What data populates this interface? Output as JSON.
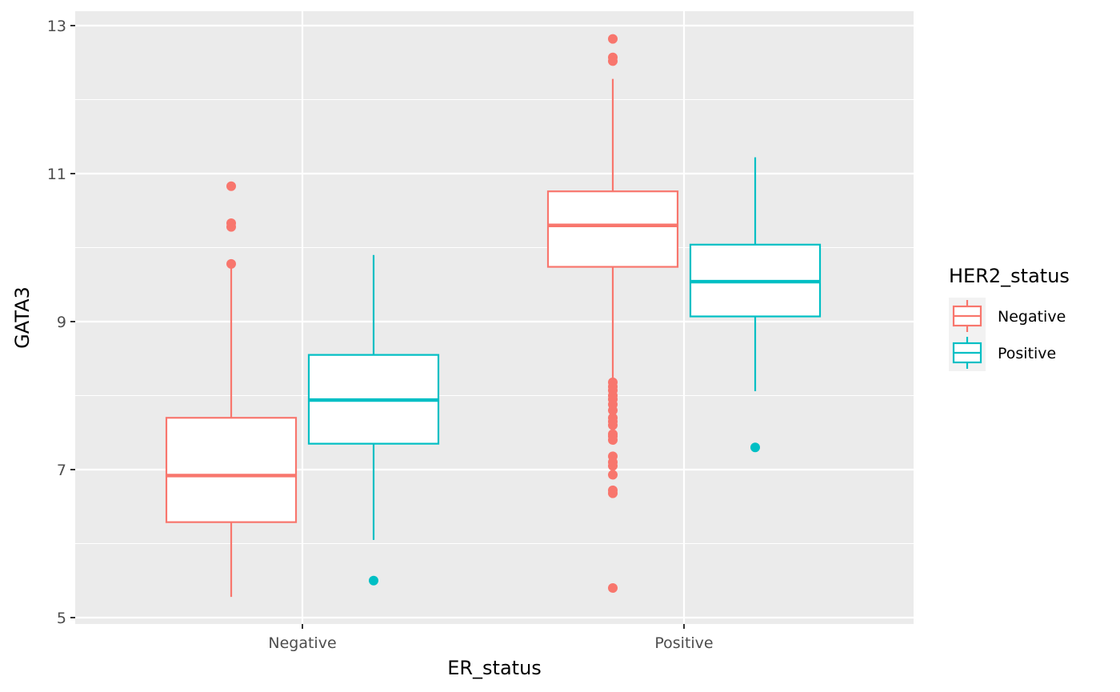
{
  "chart_data": {
    "type": "box",
    "xlabel": "ER_status",
    "ylabel": "GATA3",
    "categories": [
      "Negative",
      "Positive"
    ],
    "ylim": [
      4.9,
      13.2
    ],
    "yticks": [
      "5",
      "7",
      "9",
      "11",
      "13"
    ],
    "grid": true,
    "legend": {
      "title": "HER2_status",
      "position": "right"
    },
    "series": [
      {
        "name": "Negative",
        "color": "#F8766D",
        "boxes": [
          {
            "category": "Negative",
            "whisker_low": 5.28,
            "q1": 6.29,
            "median": 6.92,
            "q3": 7.7,
            "whisker_high": 9.77,
            "outliers": [
              9.78,
              10.28,
              10.33,
              10.83
            ]
          },
          {
            "category": "Positive",
            "whisker_low": 8.2,
            "q1": 9.74,
            "median": 10.3,
            "q3": 10.76,
            "whisker_high": 12.28,
            "outliers": [
              5.4,
              6.68,
              6.72,
              6.93,
              7.05,
              7.1,
              7.18,
              7.4,
              7.45,
              7.48,
              7.6,
              7.65,
              7.7,
              7.8,
              7.88,
              7.95,
              8.0,
              8.07,
              8.12,
              8.18,
              12.52,
              12.57,
              12.82
            ]
          }
        ]
      },
      {
        "name": "Positive",
        "color": "#00BFC4",
        "boxes": [
          {
            "category": "Negative",
            "whisker_low": 6.05,
            "q1": 7.35,
            "median": 7.94,
            "q3": 8.55,
            "whisker_high": 9.9,
            "outliers": [
              5.5
            ]
          },
          {
            "category": "Positive",
            "whisker_low": 8.06,
            "q1": 9.07,
            "median": 9.54,
            "q3": 10.04,
            "whisker_high": 11.22,
            "outliers": [
              7.3
            ]
          }
        ]
      }
    ]
  }
}
